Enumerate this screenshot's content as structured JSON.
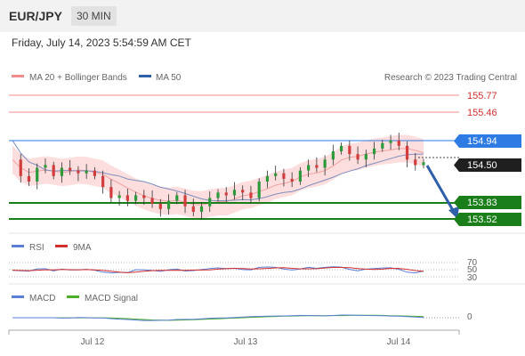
{
  "header": {
    "symbol": "EUR/JPY",
    "timeframe": "30 MIN"
  },
  "datetime": "Friday, July 14, 2023 5:54:59 AM CET",
  "legend": {
    "ma20_bb": "MA 20 + Bollinger Bands",
    "ma50": "MA 50",
    "credit": "Research © 2023 Trading Central"
  },
  "colors": {
    "red_levels": "#f28c8c",
    "blue_level": "#2e7be4",
    "green_level": "#1a7f1a",
    "bb_fill": "#fbd3d3",
    "ma50": "#6f7fb5",
    "candle_up": "#2c9a3a",
    "candle_down": "#d33c3c",
    "arrow": "#2e5fa8"
  },
  "levels": {
    "red": [
      "155.77",
      "155.46"
    ],
    "blue": "154.94",
    "current": "154.50",
    "green": [
      "153.83",
      "153.52"
    ]
  },
  "rsi_panel": {
    "label1": "RSI",
    "label2": "9MA",
    "levels": [
      "70",
      "50",
      "30"
    ]
  },
  "macd_panel": {
    "label1": "MACD",
    "label2": "MACD Signal",
    "zero": "0"
  },
  "x_axis": [
    "Jul 12",
    "Jul 13",
    "Jul 14"
  ],
  "chart_data": {
    "type": "candlestick",
    "x": [
      "Jul 12",
      "Jul 13",
      "Jul 14"
    ],
    "price_levels": {
      "resistance": [
        155.77,
        155.46,
        154.94
      ],
      "current": 154.5,
      "support": [
        153.83,
        153.52
      ]
    },
    "price_path": [
      154.6,
      154.3,
      154.2,
      154.45,
      154.5,
      154.3,
      154.45,
      154.4,
      154.35,
      154.4,
      154.3,
      154.1,
      153.9,
      153.95,
      153.85,
      153.95,
      153.9,
      153.8,
      153.7,
      153.85,
      153.95,
      153.75,
      153.65,
      153.75,
      153.9,
      154.0,
      153.95,
      154.05,
      154.0,
      153.9,
      154.2,
      154.3,
      154.35,
      154.25,
      154.2,
      154.4,
      154.5,
      154.45,
      154.6,
      154.75,
      154.85,
      154.7,
      154.6,
      154.7,
      154.8,
      154.9,
      154.95,
      154.85,
      154.6,
      154.5,
      154.55
    ],
    "rsi_levels": [
      70,
      50,
      30
    ],
    "macd_zero": 0,
    "forecast": "down toward 153.52"
  }
}
